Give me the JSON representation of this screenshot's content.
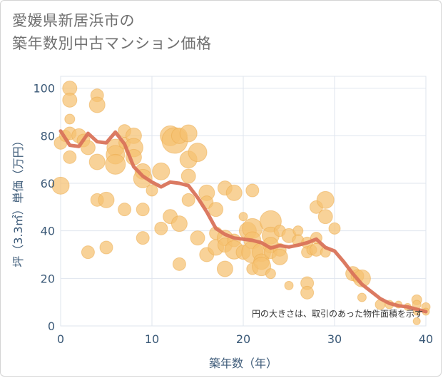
{
  "title_line1": "愛媛県新居浜市の",
  "title_line2": "築年数別中古マンション価格",
  "colors": {
    "bubble": "#f5c070",
    "bubble_stroke": "#ecaa4a",
    "line": "#d9735a",
    "grid": "#dfe5ee",
    "axis_text": "#3c5a78"
  },
  "chart_data": {
    "type": "scatter",
    "xlabel": "築年数（年）",
    "ylabel": "坪（3.3㎡）単価（万円）",
    "xlim": [
      0,
      40
    ],
    "ylim": [
      0,
      105
    ],
    "x_ticks": [
      0,
      10,
      20,
      30,
      40
    ],
    "y_ticks": [
      0,
      20,
      40,
      60,
      80,
      100
    ],
    "grid": true,
    "note": "円の大きさは、取引のあった物件面積を示す",
    "bubbles": [
      [
        0,
        59,
        12
      ],
      [
        0,
        77,
        9
      ],
      [
        0.5,
        80,
        8
      ],
      [
        1,
        100,
        10
      ],
      [
        1,
        95,
        10
      ],
      [
        1,
        87,
        7
      ],
      [
        1,
        81,
        9
      ],
      [
        1,
        71,
        9
      ],
      [
        2,
        80,
        10
      ],
      [
        2.5,
        78,
        9
      ],
      [
        3,
        75,
        10
      ],
      [
        3,
        31,
        9
      ],
      [
        4,
        97,
        9
      ],
      [
        4,
        93,
        11
      ],
      [
        4,
        69,
        11
      ],
      [
        4,
        53,
        9
      ],
      [
        5,
        53,
        11
      ],
      [
        5,
        33,
        9
      ],
      [
        6,
        75,
        12
      ],
      [
        6,
        72,
        13
      ],
      [
        6,
        68,
        14
      ],
      [
        7,
        82,
        9
      ],
      [
        7,
        77,
        8
      ],
      [
        7,
        49,
        9
      ],
      [
        8,
        80,
        11
      ],
      [
        8,
        75,
        13
      ],
      [
        8,
        71,
        11
      ],
      [
        9,
        65,
        11
      ],
      [
        9,
        62,
        13
      ],
      [
        9,
        49,
        9
      ],
      [
        9,
        37,
        9
      ],
      [
        10,
        57,
        8
      ],
      [
        11,
        65,
        12
      ],
      [
        11,
        41,
        9
      ],
      [
        12,
        80,
        14
      ],
      [
        12.5,
        78,
        18
      ],
      [
        13,
        80,
        11
      ],
      [
        12,
        46,
        10
      ],
      [
        13,
        43,
        11
      ],
      [
        13,
        26,
        9
      ],
      [
        14,
        81,
        12
      ],
      [
        14,
        70,
        12
      ],
      [
        14,
        63,
        10
      ],
      [
        14,
        53,
        9
      ],
      [
        15,
        73,
        13
      ],
      [
        15,
        37,
        10
      ],
      [
        16,
        56,
        11
      ],
      [
        16,
        52,
        9
      ],
      [
        16,
        30,
        10
      ],
      [
        17,
        49,
        10
      ],
      [
        17,
        39,
        9
      ],
      [
        17,
        33,
        11
      ],
      [
        18,
        58,
        10
      ],
      [
        18,
        37,
        11
      ],
      [
        18,
        34,
        10
      ],
      [
        18,
        24,
        11
      ],
      [
        19,
        56,
        11
      ],
      [
        19,
        36,
        9
      ],
      [
        19,
        32,
        13
      ],
      [
        20,
        46,
        6
      ],
      [
        20,
        31,
        10
      ],
      [
        20.5,
        40,
        12
      ],
      [
        21,
        57,
        9
      ],
      [
        21,
        41,
        14
      ],
      [
        21,
        36,
        12
      ],
      [
        21,
        31,
        15
      ],
      [
        21,
        24,
        8
      ],
      [
        22,
        31,
        13
      ],
      [
        22,
        27,
        11
      ],
      [
        22,
        25,
        13
      ],
      [
        23,
        44,
        15
      ],
      [
        23,
        38,
        12
      ],
      [
        23,
        34,
        11
      ],
      [
        23,
        31,
        9
      ],
      [
        23,
        22,
        7
      ],
      [
        24,
        40,
        8
      ],
      [
        24,
        32,
        9
      ],
      [
        24,
        29,
        11
      ],
      [
        25,
        38,
        10
      ],
      [
        25,
        17,
        6
      ],
      [
        26,
        40,
        7
      ],
      [
        26,
        36,
        8
      ],
      [
        27,
        35,
        8
      ],
      [
        27,
        31,
        8
      ],
      [
        27,
        18,
        9
      ],
      [
        27,
        14,
        9
      ],
      [
        27.5,
        32,
        7
      ],
      [
        28,
        50,
        9
      ],
      [
        28,
        37,
        8
      ],
      [
        28,
        32,
        9
      ],
      [
        29,
        53,
        12
      ],
      [
        29,
        46,
        10
      ],
      [
        29,
        31,
        7
      ],
      [
        30,
        41,
        8
      ],
      [
        32,
        22,
        10
      ],
      [
        32.5,
        21,
        9
      ],
      [
        33,
        20,
        12
      ],
      [
        33,
        12,
        6
      ],
      [
        35,
        9,
        7
      ],
      [
        36,
        9,
        6
      ],
      [
        37,
        9,
        5
      ],
      [
        38,
        8,
        5
      ],
      [
        39,
        11,
        7
      ],
      [
        39,
        9,
        6
      ],
      [
        39,
        6,
        5
      ],
      [
        39,
        2,
        5
      ],
      [
        40,
        8,
        6
      ],
      [
        40,
        6,
        5
      ]
    ],
    "line": {
      "x": [
        0,
        1,
        2,
        3,
        4,
        5,
        6,
        7,
        8,
        9,
        10,
        11,
        12,
        13,
        14,
        15,
        16,
        17,
        18,
        19,
        20,
        21,
        22,
        23,
        24,
        25,
        26,
        27,
        28,
        29,
        30,
        31,
        32,
        33,
        34,
        35,
        36,
        37,
        38,
        39,
        40
      ],
      "y": [
        82,
        76,
        75.5,
        81,
        77.5,
        77,
        81.5,
        76.5,
        67,
        63,
        60.5,
        58.5,
        60.5,
        60,
        59,
        54,
        48,
        41,
        38.5,
        37,
        36.5,
        36,
        35,
        32.8,
        33.8,
        33.2,
        34,
        35,
        36.5,
        33,
        31.5,
        27,
        22,
        17.5,
        14.5,
        11.5,
        9.5,
        8.5,
        8,
        7,
        6
      ]
    }
  }
}
